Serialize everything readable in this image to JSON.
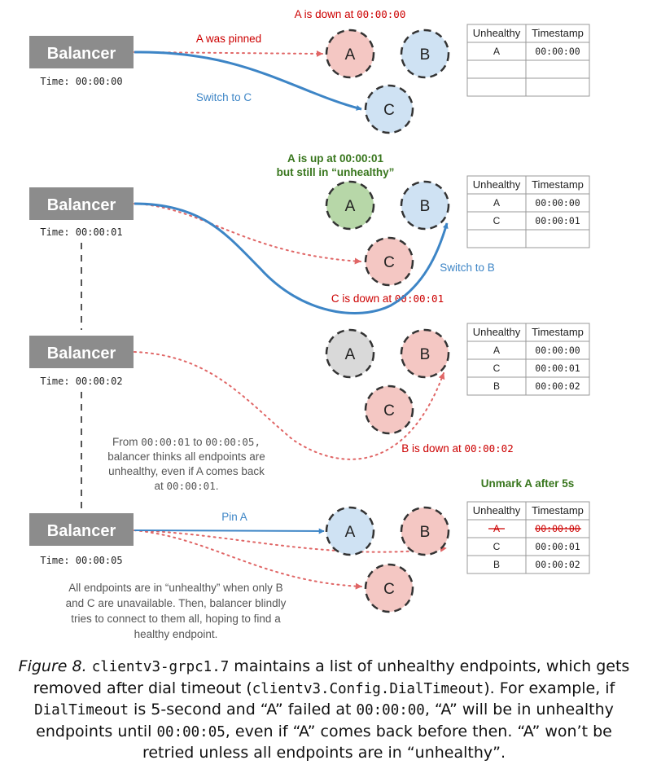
{
  "balancer_label": "Balancer",
  "nodes": {
    "a": "A",
    "b": "B",
    "c": "C"
  },
  "table_headers": {
    "unhealthy": "Unhealthy",
    "timestamp": "Timestamp"
  },
  "panel1": {
    "time": "Time: 00:00:00",
    "event_text": "A is down at ",
    "event_time": "00:00:00",
    "pinned": "A was pinned",
    "switch": "Switch to C",
    "rows": [
      [
        "A",
        "00:00:00"
      ],
      [
        "",
        ""
      ],
      [
        "",
        ""
      ]
    ]
  },
  "panel2": {
    "time": "Time: 00:00:01",
    "note_line1": "A is up at 00:00:01",
    "note_line2": "but still in “unhealthy”",
    "switch": "Switch to B",
    "event_text": "C is down at ",
    "event_time": "00:00:01",
    "rows": [
      [
        "A",
        "00:00:00"
      ],
      [
        "C",
        "00:00:01"
      ],
      [
        "",
        ""
      ]
    ]
  },
  "panel3": {
    "time": "Time: 00:00:02",
    "event_text": "B is down at ",
    "event_time": "00:00:02",
    "note": {
      "l1a": "From ",
      "l1b": "00:00:01",
      "l1c": " to ",
      "l1d": "00:00:05,",
      "l2": "balancer thinks all endpoints are",
      "l3": "unhealthy, even if A comes back",
      "l4a": "at ",
      "l4b": "00:00:01",
      "l4c": "."
    },
    "rows": [
      [
        "A",
        "00:00:00"
      ],
      [
        "C",
        "00:00:01"
      ],
      [
        "B",
        "00:00:02"
      ]
    ]
  },
  "panel4": {
    "time": "Time: 00:00:05",
    "unmark": "Unmark A after 5s",
    "pin": "Pin A",
    "note": [
      "All endpoints are in “unhealthy” when only B",
      "and C are unavailable. Then, balancer blindly",
      "tries to connect to them all, hoping to find a",
      "healthy endpoint."
    ],
    "rows": [
      [
        "A",
        "00:00:00"
      ],
      [
        "C",
        "00:00:01"
      ],
      [
        "B",
        "00:00:02"
      ]
    ]
  },
  "caption": {
    "fig": "Figure 8.",
    "c1": "clientv3-grpc1.7",
    "t1": " maintains a list of unhealthy endpoints, which gets removed after dial timeout (",
    "c2": "clientv3.Config.DialTimeout",
    "t2": "). For example, if ",
    "c3": "DialTimeout",
    "t3": " is 5-second and “A” failed at ",
    "c4": "00:00:00",
    "t4": ", “A” will be in unhealthy endpoints until ",
    "c5": "00:00:05",
    "t5": ", even if “A” comes back before then. “A” won’t be retried unless all endpoints are in “unhealthy”."
  },
  "colors": {
    "balancer": "#8c8c8c",
    "down_fill": "#f4c7c3",
    "up_fill": "#b7d7a8",
    "neutral_fill": "#cfe2f3",
    "gray_fill": "#d9d9d9",
    "red_text": "#cc0000",
    "green_text": "#38761d",
    "blue_text": "#3d85c6",
    "red_arrow": "#e06666"
  }
}
